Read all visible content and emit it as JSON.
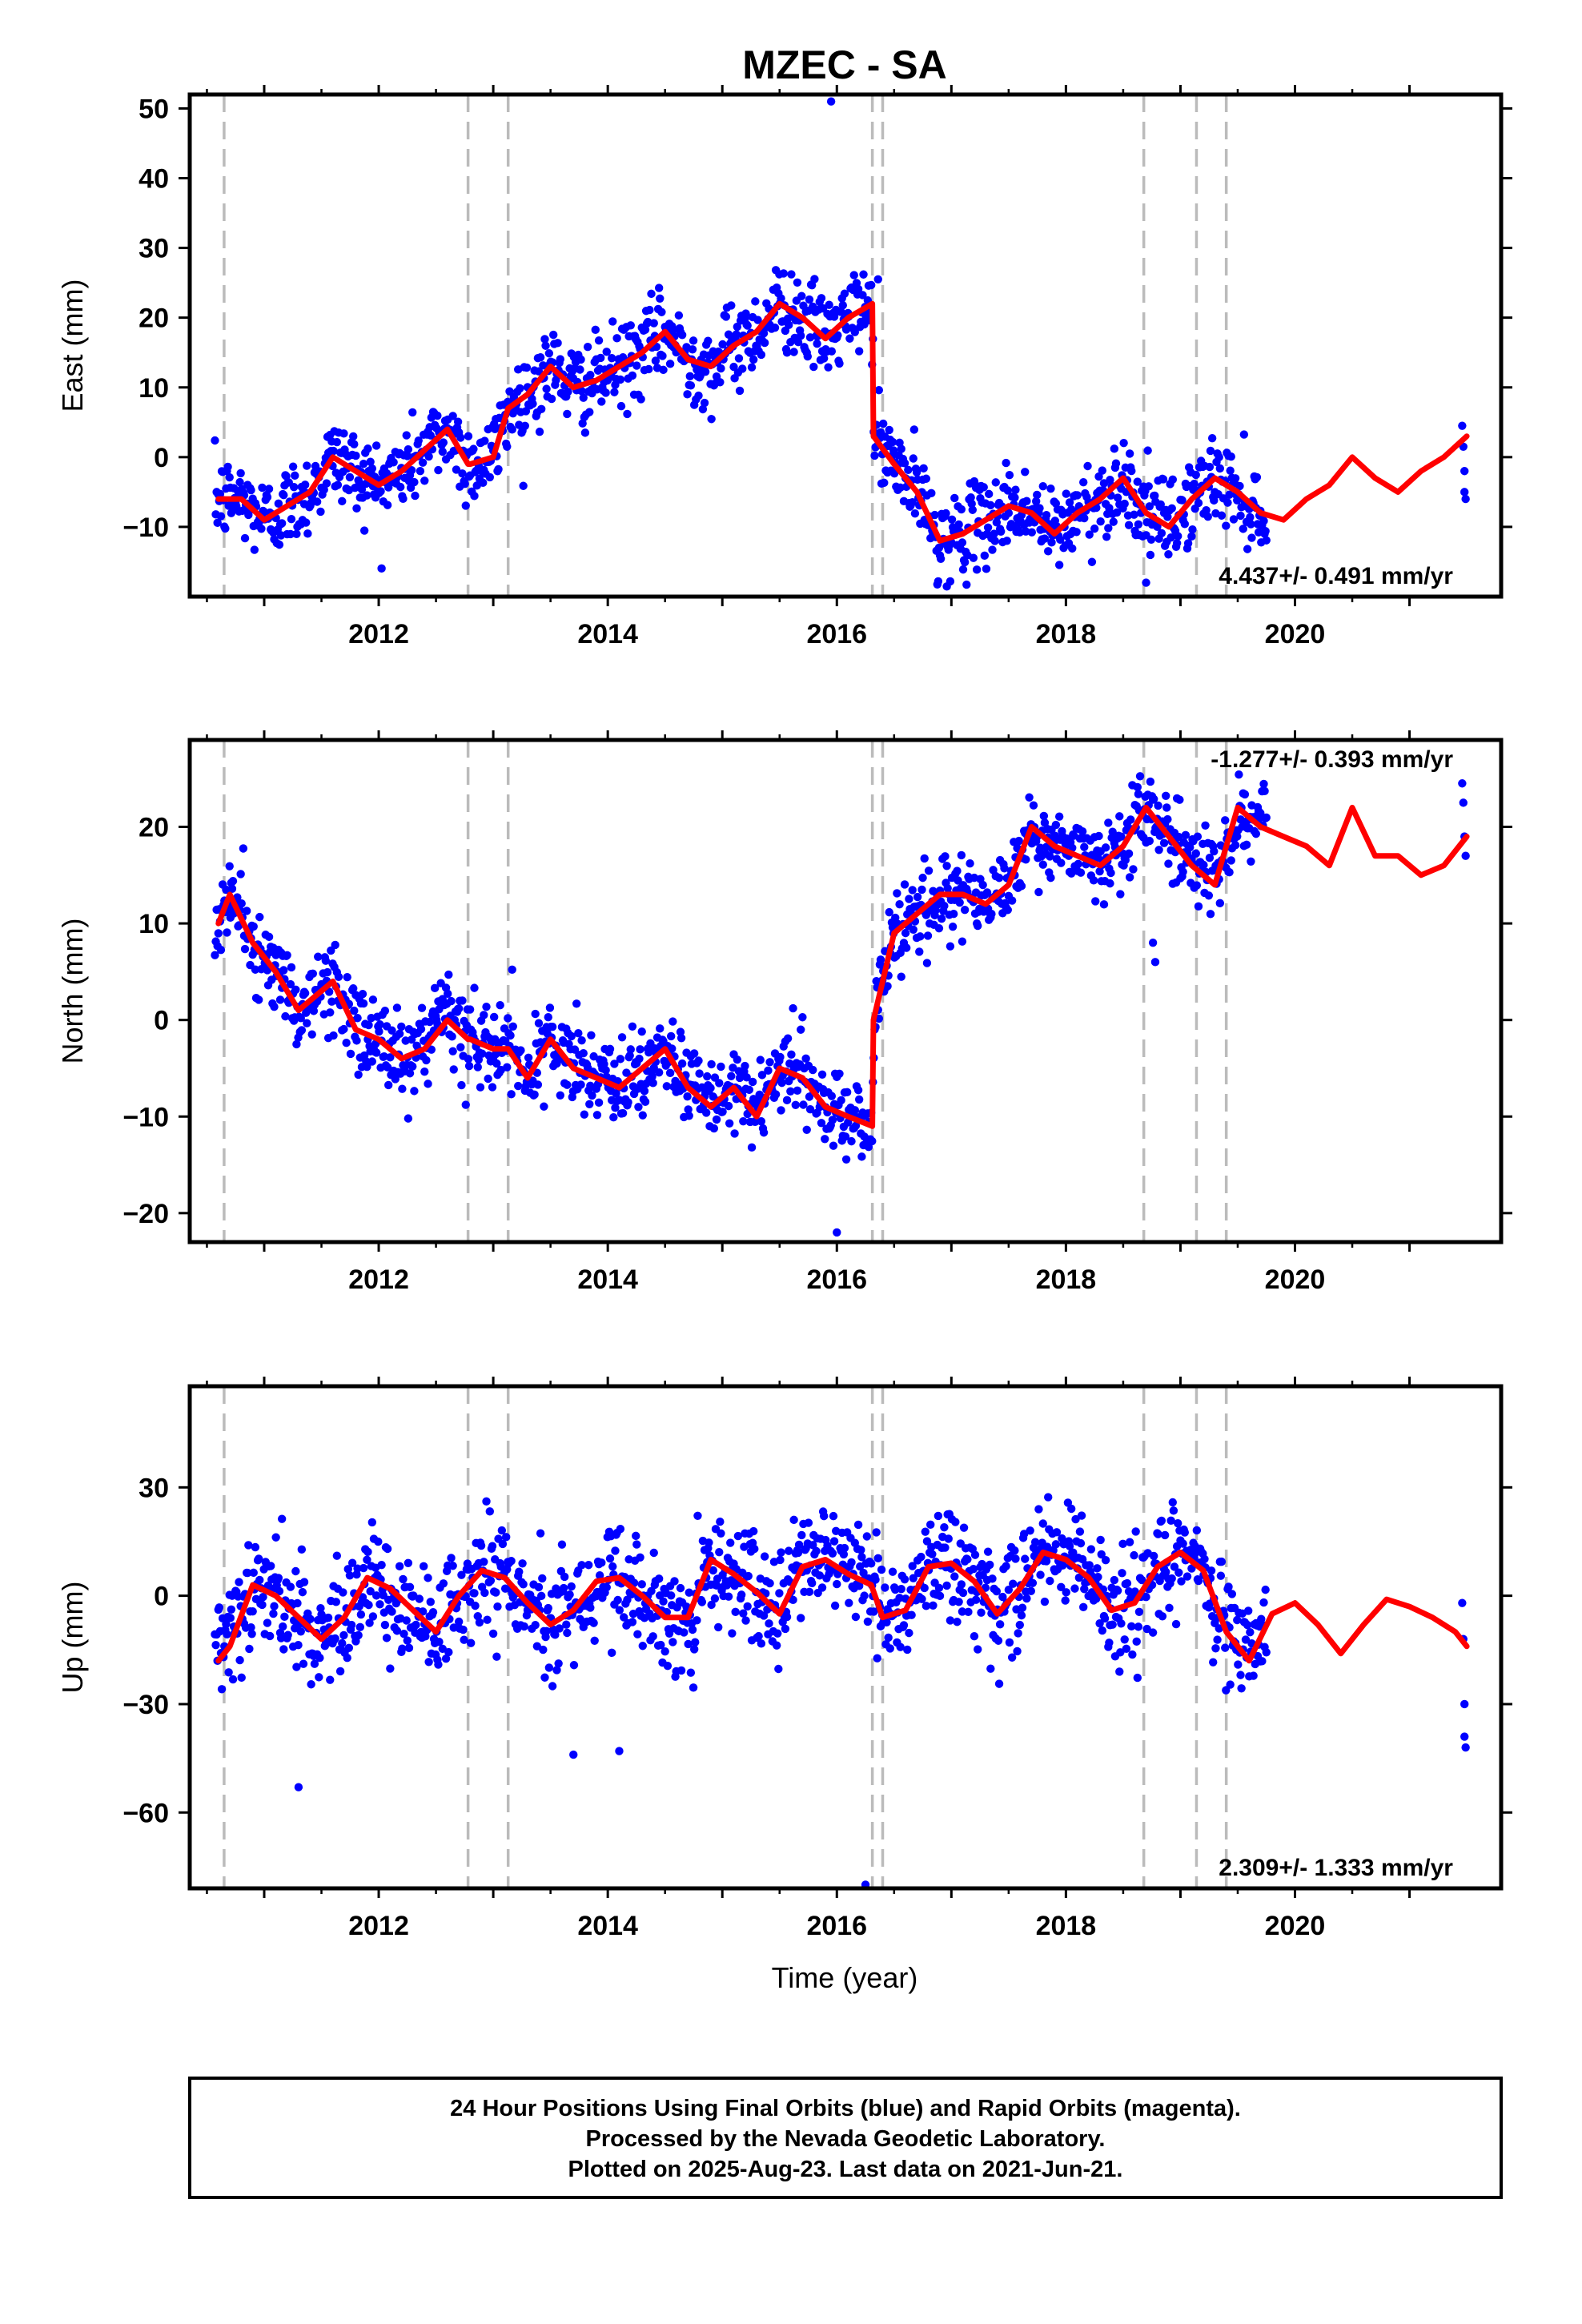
{
  "title": "MZEC - SA",
  "chart_data": [
    {
      "type": "scatter",
      "panel": "east",
      "ylabel": "East (mm)",
      "xlabel": "",
      "xlim": [
        2010.35,
        2021.8
      ],
      "ylim": [
        -20,
        52
      ],
      "xticks": [
        2012,
        2014,
        2016,
        2018,
        2020
      ],
      "yticks": [
        -10,
        0,
        10,
        20,
        30,
        40,
        50
      ],
      "ytick_labels": [
        "−10",
        "0",
        "10",
        "20",
        "30",
        "40",
        "50"
      ],
      "rate_text": "4.437+/- 0.491 mm/yr",
      "rate_position": "bottom-right",
      "breaks": [
        2010.65,
        2012.78,
        2013.13,
        2016.31,
        2016.4,
        2018.68,
        2019.14,
        2019.4
      ],
      "model": {
        "name": "model",
        "x": [
          2010.6,
          2010.8,
          2011.0,
          2011.2,
          2011.4,
          2011.6,
          2011.8,
          2012.0,
          2012.2,
          2012.4,
          2012.6,
          2012.78,
          2012.8,
          2013.0,
          2013.13,
          2013.3,
          2013.5,
          2013.7,
          2013.9,
          2014.1,
          2014.3,
          2014.5,
          2014.7,
          2014.9,
          2015.1,
          2015.3,
          2015.5,
          2015.7,
          2015.9,
          2016.1,
          2016.31,
          2016.32,
          2016.5,
          2016.7,
          2016.9,
          2017.1,
          2017.3,
          2017.5,
          2017.7,
          2017.9,
          2018.1,
          2018.3,
          2018.5,
          2018.7,
          2018.9,
          2019.1,
          2019.3,
          2019.5,
          2019.7,
          2019.9,
          2020.1,
          2020.3,
          2020.5,
          2020.7,
          2020.9,
          2021.1,
          2021.3,
          2021.5
        ],
        "values": [
          -6,
          -6,
          -9,
          -7,
          -5,
          0,
          -2,
          -4,
          -2,
          1,
          4,
          -1,
          -1,
          0,
          7,
          9,
          13,
          10,
          11,
          13,
          15,
          18,
          14,
          13,
          16,
          18,
          22,
          20,
          17,
          20,
          22,
          3,
          -1,
          -5,
          -12,
          -11,
          -9,
          -7,
          -8,
          -11,
          -8,
          -6,
          -3,
          -8,
          -10,
          -6,
          -3,
          -5,
          -8,
          -9,
          -6,
          -4,
          0,
          -3,
          -5,
          -2,
          0,
          3
        ]
      },
      "observations": {
        "name": "24 Hour Positions",
        "end_year": 2019.75,
        "late_x": [
          2021.46,
          2021.47,
          2021.48,
          2021.48,
          2021.49
        ],
        "late_values": [
          4.5,
          1.5,
          -2,
          -5,
          -6
        ],
        "outliers_x": [
          2015.95,
          2016.36,
          2018.7
        ],
        "outliers_values": [
          51,
          25.5,
          -18
        ]
      }
    },
    {
      "type": "scatter",
      "panel": "north",
      "ylabel": "North (mm)",
      "xlabel": "",
      "xlim": [
        2010.35,
        2021.8
      ],
      "ylim": [
        -23,
        29
      ],
      "xticks": [
        2012,
        2014,
        2016,
        2018,
        2020
      ],
      "yticks": [
        -20,
        -10,
        0,
        10,
        20
      ],
      "ytick_labels": [
        "−20",
        "−10",
        "0",
        "10",
        "20"
      ],
      "rate_text": "-1.277+/- 0.393 mm/yr",
      "rate_position": "top-right",
      "breaks": [
        2010.65,
        2012.78,
        2013.13,
        2016.31,
        2016.4,
        2018.68,
        2019.14,
        2019.4
      ],
      "model": {
        "name": "model",
        "x": [
          2010.6,
          2010.7,
          2010.9,
          2011.1,
          2011.3,
          2011.6,
          2011.8,
          2012.0,
          2012.2,
          2012.4,
          2012.6,
          2012.78,
          2012.8,
          2013.0,
          2013.13,
          2013.3,
          2013.5,
          2013.7,
          2013.9,
          2014.1,
          2014.3,
          2014.5,
          2014.7,
          2014.9,
          2015.1,
          2015.3,
          2015.5,
          2015.7,
          2015.9,
          2016.1,
          2016.31,
          2016.32,
          2016.5,
          2016.7,
          2016.9,
          2017.1,
          2017.3,
          2017.5,
          2017.7,
          2017.9,
          2018.1,
          2018.3,
          2018.5,
          2018.7,
          2018.9,
          2019.1,
          2019.3,
          2019.5,
          2019.7,
          2019.9,
          2020.1,
          2020.3,
          2020.5,
          2020.7,
          2020.9,
          2021.1,
          2021.3,
          2021.5
        ],
        "values": [
          10,
          13,
          8,
          5,
          1,
          4,
          -1,
          -2,
          -4,
          -3,
          0,
          -2,
          -2,
          -3,
          -3,
          -6,
          -2,
          -5,
          -6,
          -7,
          -5,
          -3,
          -7,
          -9,
          -7,
          -10,
          -5,
          -6,
          -9,
          -10,
          -11,
          0,
          9,
          11,
          13,
          13,
          12,
          14,
          20,
          18,
          17,
          16,
          18,
          22,
          19,
          16,
          14,
          22,
          20,
          19,
          18,
          16,
          22,
          17,
          17,
          15,
          16,
          19
        ]
      },
      "observations": {
        "name": "24 Hour Positions",
        "end_year": 2019.75,
        "late_x": [
          2021.46,
          2021.47,
          2021.48,
          2021.49
        ],
        "late_values": [
          24.5,
          22.5,
          19,
          17
        ],
        "outliers_x": [
          2016.0,
          2018.78,
          2018.76
        ],
        "outliers_values": [
          -22,
          6,
          8
        ]
      }
    },
    {
      "type": "scatter",
      "panel": "up",
      "ylabel": "Up (mm)",
      "xlabel": "Time (year)",
      "xlim": [
        2010.35,
        2021.8
      ],
      "ylim": [
        -81,
        58
      ],
      "xticks": [
        2012,
        2014,
        2016,
        2018,
        2020
      ],
      "yticks": [
        -60,
        -30,
        0,
        30
      ],
      "ytick_labels": [
        "−60",
        "−30",
        "0",
        "30"
      ],
      "rate_text": "2.309+/- 1.333 mm/yr",
      "rate_position": "bottom-right",
      "breaks": [
        2010.65,
        2012.78,
        2013.13,
        2016.31,
        2016.4,
        2018.68,
        2019.14,
        2019.4
      ],
      "model": {
        "name": "model",
        "x": [
          2010.6,
          2010.7,
          2010.9,
          2011.1,
          2011.3,
          2011.5,
          2011.7,
          2011.9,
          2012.1,
          2012.3,
          2012.5,
          2012.7,
          2012.9,
          2013.1,
          2013.3,
          2013.5,
          2013.7,
          2013.9,
          2014.1,
          2014.3,
          2014.5,
          2014.7,
          2014.9,
          2015.1,
          2015.3,
          2015.5,
          2015.7,
          2015.9,
          2016.1,
          2016.3,
          2016.4,
          2016.6,
          2016.8,
          2017.0,
          2017.2,
          2017.4,
          2017.6,
          2017.8,
          2018.0,
          2018.2,
          2018.4,
          2018.6,
          2018.8,
          2019.0,
          2019.2,
          2019.4,
          2019.6,
          2019.8,
          2020.0,
          2020.2,
          2020.4,
          2020.6,
          2020.8,
          2021.0,
          2021.2,
          2021.4,
          2021.5
        ],
        "values": [
          -18,
          -14,
          3,
          0,
          -6,
          -12,
          -6,
          5,
          2,
          -4,
          -10,
          0,
          7,
          5,
          -2,
          -8,
          -4,
          4,
          5,
          0,
          -6,
          -6,
          10,
          6,
          1,
          -5,
          8,
          10,
          6,
          3,
          -6,
          -4,
          8,
          9,
          4,
          -5,
          2,
          12,
          10,
          5,
          -4,
          -2,
          8,
          12,
          7,
          -10,
          -18,
          -5,
          -2,
          -8,
          -16,
          -8,
          -1,
          -3,
          -6,
          -10,
          -14
        ]
      },
      "observations": {
        "name": "24 Hour Positions",
        "end_year": 2019.75,
        "late_x": [
          2021.46,
          2021.47,
          2021.48,
          2021.48,
          2021.49
        ],
        "late_values": [
          -2,
          -12,
          -30,
          -39,
          -42
        ],
        "outliers_x": [
          2011.3,
          2016.25,
          2013.7,
          2014.1
        ],
        "outliers_values": [
          -53,
          -80,
          -44,
          -43
        ]
      }
    }
  ],
  "footer": {
    "line1": "24 Hour Positions Using Final Orbits (blue) and Rapid Orbits (magenta).",
    "line2": "Processed by the Nevada Geodetic Laboratory.",
    "line3": "Plotted on 2025-Aug-23. Last data on 2021-Jun-21."
  },
  "colors": {
    "observations": "#0000ff",
    "model": "#ff0000",
    "breaks": "#bbbbbb",
    "frame": "#000000"
  }
}
